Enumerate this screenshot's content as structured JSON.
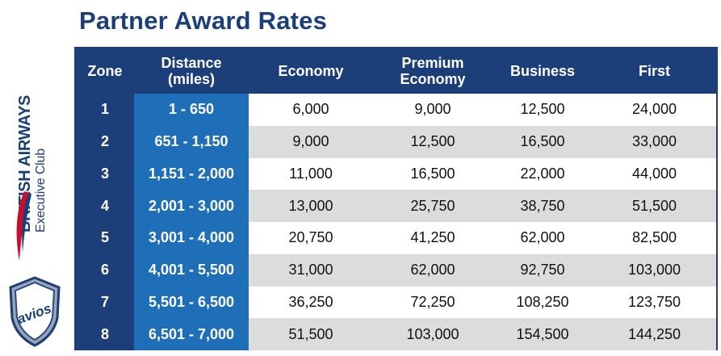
{
  "title": "Partner Award Rates",
  "brand": {
    "airline_line1": "BRITISH AIRWAYS",
    "airline_line2": "Executive Club",
    "avios_label": "avios"
  },
  "colors": {
    "navy": "#1c3f7a",
    "distance_blue": "#1f6fb8",
    "row_alt_gray": "#dcdcdc",
    "speedmarque_red": "#c8102e"
  },
  "table": {
    "headers": {
      "zone": "Zone",
      "distance_line1": "Distance",
      "distance_line2": "(miles)",
      "economy": "Economy",
      "premium_line1": "Premium",
      "premium_line2": "Economy",
      "business": "Business",
      "first": "First"
    },
    "rows": [
      {
        "zone": "1",
        "distance": "1 - 650",
        "economy": "6,000",
        "premium": "9,000",
        "business": "12,500",
        "first": "24,000"
      },
      {
        "zone": "2",
        "distance": "651 - 1,150",
        "economy": "9,000",
        "premium": "12,500",
        "business": "16,500",
        "first": "33,000"
      },
      {
        "zone": "3",
        "distance": "1,151 - 2,000",
        "economy": "11,000",
        "premium": "16,500",
        "business": "22,000",
        "first": "44,000"
      },
      {
        "zone": "4",
        "distance": "2,001 - 3,000",
        "economy": "13,000",
        "premium": "25,750",
        "business": "38,750",
        "first": "51,500"
      },
      {
        "zone": "5",
        "distance": "3,001 - 4,000",
        "economy": "20,750",
        "premium": "41,250",
        "business": "62,000",
        "first": "82,500"
      },
      {
        "zone": "6",
        "distance": "4,001 - 5,500",
        "economy": "31,000",
        "premium": "62,000",
        "business": "92,750",
        "first": "103,000"
      },
      {
        "zone": "7",
        "distance": "5,501 - 6,500",
        "economy": "36,250",
        "premium": "72,250",
        "business": "108,250",
        "first": "123,750"
      },
      {
        "zone": "8",
        "distance": "6,501 - 7,000",
        "economy": "51,500",
        "premium": "103,000",
        "business": "154,500",
        "first": "144,250"
      }
    ]
  }
}
